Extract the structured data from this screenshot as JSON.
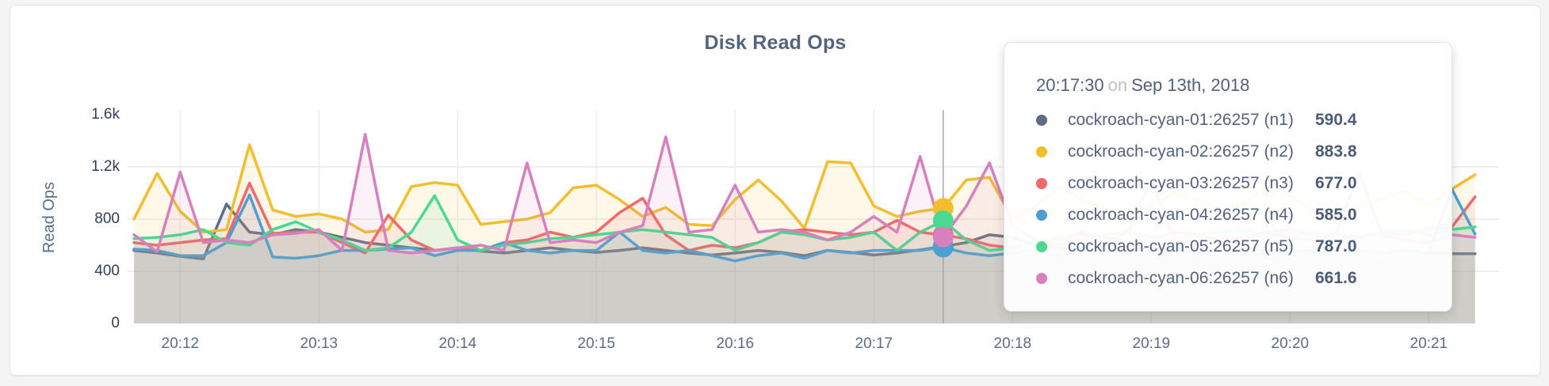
{
  "header": {
    "title": "Disk Read Ops"
  },
  "colors": {
    "grid_h": "#e9e9e9",
    "grid_v": "#ededed",
    "crosshair": "#a6a6a6",
    "card_background": "#ffffff",
    "page_background": "#f4f4f5"
  },
  "chart_data": {
    "type": "area",
    "title": "Disk Read Ops",
    "xlabel": "",
    "ylabel": "Read Ops",
    "ylim": [
      0,
      1600
    ],
    "grid": true,
    "legend_position": "tooltip",
    "y_ticks": [
      {
        "label": "1.6k",
        "value": 1600
      },
      {
        "label": "1.2k",
        "value": 1200
      },
      {
        "label": "800",
        "value": 800
      },
      {
        "label": "400",
        "value": 400
      },
      {
        "label": "0",
        "value": 0
      }
    ],
    "x_ticks": [
      "20:12",
      "20:13",
      "20:14",
      "20:15",
      "20:16",
      "20:17",
      "20:18",
      "20:19",
      "20:20",
      "20:21"
    ],
    "start_time": "20:11:40",
    "end_time": "20:21:20",
    "interval_seconds": 10,
    "series": [
      {
        "id": "n1",
        "name": "cockroach-cyan-01:26257 (n1)",
        "color": "#5F6C87",
        "values": [
          560,
          540,
          515,
          495,
          915,
          700,
          680,
          720,
          700,
          660,
          620,
          600,
          580,
          560,
          580,
          555,
          540,
          560,
          580,
          560,
          545,
          560,
          580,
          560,
          540,
          525,
          540,
          560,
          545,
          520,
          560,
          545,
          525,
          540,
          565,
          590.4,
          620,
          680,
          660,
          600,
          580,
          560,
          545,
          560,
          580,
          560,
          540,
          560,
          580,
          560,
          545,
          560,
          580,
          560,
          540,
          560,
          540,
          535,
          535
        ]
      },
      {
        "id": "n2",
        "name": "cockroach-cyan-02:26257 (n2)",
        "color": "#F2BE2C",
        "values": [
          800,
          1150,
          860,
          700,
          720,
          1370,
          870,
          820,
          840,
          800,
          700,
          720,
          1050,
          1080,
          1060,
          760,
          780,
          800,
          850,
          1040,
          1060,
          950,
          820,
          890,
          760,
          750,
          950,
          1100,
          940,
          730,
          1240,
          1230,
          900,
          820,
          860,
          883.8,
          1100,
          1120,
          800,
          900,
          1050,
          950,
          880,
          820,
          900,
          1000,
          950,
          870,
          920,
          1060,
          980,
          860,
          790,
          880,
          960,
          1020,
          900,
          1030,
          1140
        ]
      },
      {
        "id": "n3",
        "name": "cockroach-cyan-03:26257 (n3)",
        "color": "#F16969",
        "values": [
          620,
          600,
          620,
          640,
          650,
          1075,
          690,
          700,
          700,
          620,
          540,
          830,
          640,
          560,
          580,
          560,
          620,
          640,
          700,
          660,
          700,
          850,
          960,
          680,
          560,
          600,
          580,
          620,
          700,
          720,
          700,
          680,
          700,
          790,
          700,
          677,
          650,
          600,
          580,
          620,
          640,
          700,
          660,
          620,
          640,
          700,
          680,
          640,
          660,
          700,
          720,
          680,
          640,
          660,
          700,
          680,
          730,
          740,
          970
        ]
      },
      {
        "id": "n4",
        "name": "cockroach-cyan-04:26257 (n4)",
        "color": "#4E9FD1",
        "values": [
          570,
          560,
          520,
          520,
          620,
          985,
          510,
          500,
          520,
          560,
          560,
          570,
          580,
          520,
          560,
          560,
          620,
          560,
          540,
          560,
          560,
          700,
          560,
          540,
          560,
          520,
          480,
          520,
          540,
          500,
          560,
          540,
          560,
          560,
          560,
          585,
          540,
          520,
          540,
          560,
          520,
          540,
          560,
          540,
          520,
          560,
          540,
          560,
          520,
          540,
          560,
          540,
          520,
          560,
          540,
          560,
          540,
          1030,
          685
        ]
      },
      {
        "id": "n5",
        "name": "cockroach-cyan-05:26257 (n5)",
        "color": "#49D990",
        "values": [
          650,
          660,
          680,
          720,
          620,
          600,
          720,
          780,
          700,
          640,
          560,
          580,
          700,
          980,
          640,
          560,
          600,
          620,
          650,
          660,
          680,
          700,
          720,
          700,
          680,
          660,
          560,
          620,
          700,
          680,
          640,
          660,
          700,
          560,
          700,
          787,
          640,
          560,
          580,
          620,
          660,
          640,
          680,
          700,
          660,
          640,
          680,
          700,
          720,
          680,
          660,
          700,
          680,
          660,
          700,
          720,
          680,
          720,
          740
        ]
      },
      {
        "id": "n6",
        "name": "cockroach-cyan-06:26257 (n6)",
        "color": "#D77FBF",
        "values": [
          680,
          550,
          1160,
          620,
          640,
          620,
          680,
          690,
          720,
          560,
          1450,
          560,
          540,
          560,
          580,
          600,
          560,
          1230,
          620,
          640,
          620,
          700,
          750,
          1430,
          700,
          720,
          1060,
          700,
          720,
          700,
          640,
          700,
          820,
          700,
          1280,
          661.6,
          900,
          1230,
          750,
          640,
          600,
          680,
          620,
          700,
          1100,
          640,
          600,
          620,
          640,
          700,
          660,
          640,
          700,
          1150,
          680,
          640,
          620,
          680,
          660
        ]
      }
    ]
  },
  "hover": {
    "index": 35,
    "time": "20:17:30"
  },
  "tooltip": {
    "time": "20:17:30",
    "separator": "on",
    "date": "Sep 13th, 2018",
    "rows": [
      {
        "label": "cockroach-cyan-01:26257 (n1)",
        "value": "590.4",
        "color": "#5F6C87"
      },
      {
        "label": "cockroach-cyan-02:26257 (n2)",
        "value": "883.8",
        "color": "#F2BE2C"
      },
      {
        "label": "cockroach-cyan-03:26257 (n3)",
        "value": "677.0",
        "color": "#F16969"
      },
      {
        "label": "cockroach-cyan-04:26257 (n4)",
        "value": "585.0",
        "color": "#4E9FD1"
      },
      {
        "label": "cockroach-cyan-05:26257 (n5)",
        "value": "787.0",
        "color": "#49D990"
      },
      {
        "label": "cockroach-cyan-06:26257 (n6)",
        "value": "661.6",
        "color": "#D77FBF"
      }
    ]
  }
}
